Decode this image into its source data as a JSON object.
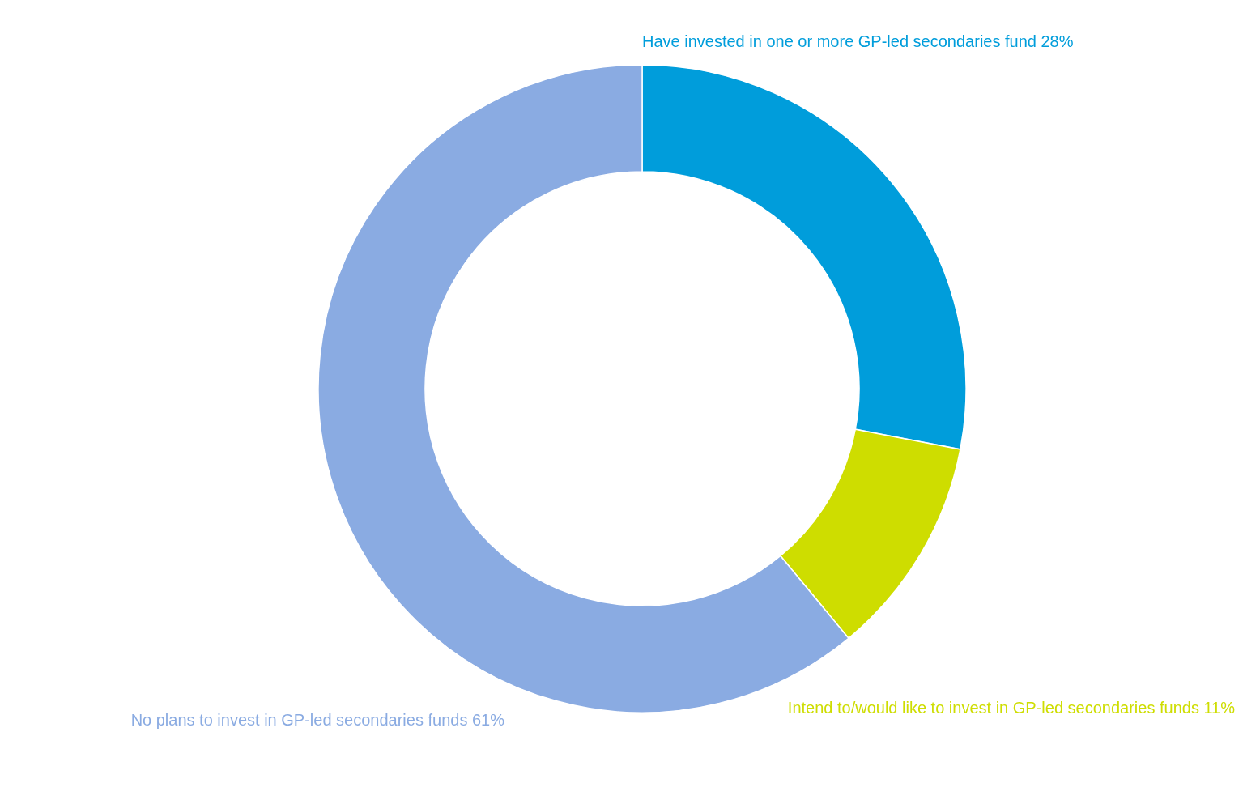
{
  "chart_data": {
    "type": "donut",
    "categories": [
      "Have invested in one or more GP-led secondaries fund",
      "Intend to/would like to invest in GP-led secondaries funds",
      "No plans to invest in GP-led secondaries funds"
    ],
    "values": [
      28,
      11,
      61
    ],
    "value_labels": [
      "28%",
      "11%",
      "61%"
    ],
    "colors": [
      "#009ddb",
      "#cedd00",
      "#8aabe2"
    ],
    "legend": false
  }
}
